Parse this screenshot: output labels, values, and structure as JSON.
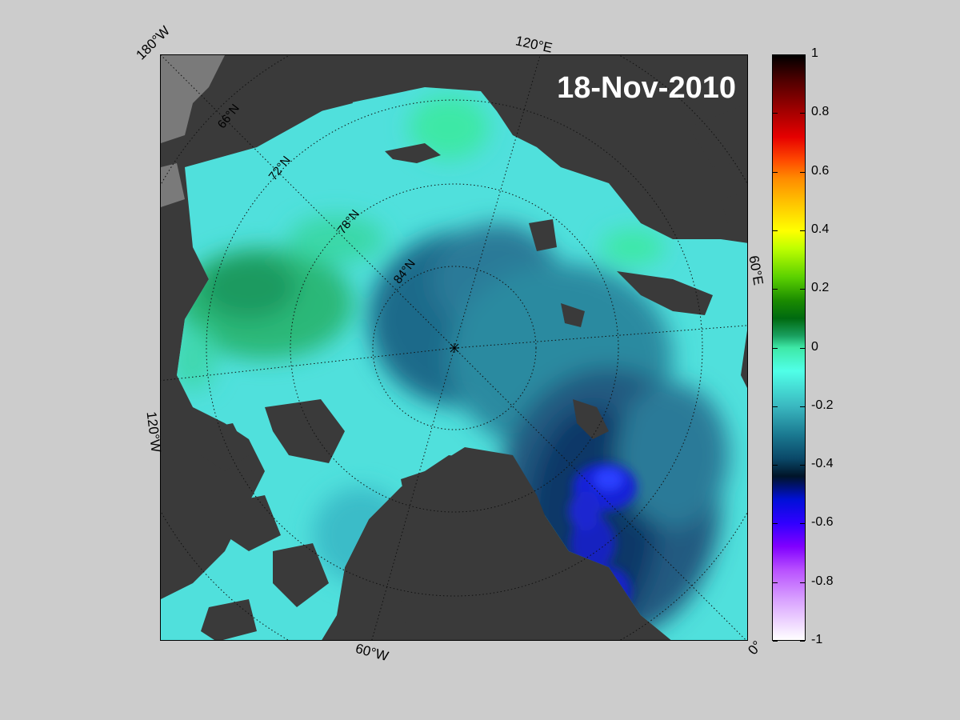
{
  "date_label": "18-Nov-2010",
  "map": {
    "projection": "north-polar-stereographic",
    "lon_labels": [
      "180°W",
      "120°E",
      "60°E",
      "0°",
      "60°W",
      "120°W"
    ],
    "lat_labels": [
      "66°N",
      "72°N",
      "78°N",
      "84°N"
    ]
  },
  "colorbar": {
    "ticks": [
      "1",
      "0.8",
      "0.6",
      "0.4",
      "0.2",
      "0",
      "-0.2",
      "-0.4",
      "-0.6",
      "-0.8",
      "-1"
    ],
    "min": -1,
    "max": 1,
    "colormap": [
      "#ffffff",
      "#b850ff",
      "#0010d8",
      "#0a4868",
      "#50ffe8",
      "#1a8a00",
      "#ffff00",
      "#ff8a00",
      "#e60000",
      "#000000"
    ]
  },
  "colors": {
    "land": "#3a3a3a",
    "background": "#cccccc",
    "ocean_mid": "#50e0e0"
  }
}
